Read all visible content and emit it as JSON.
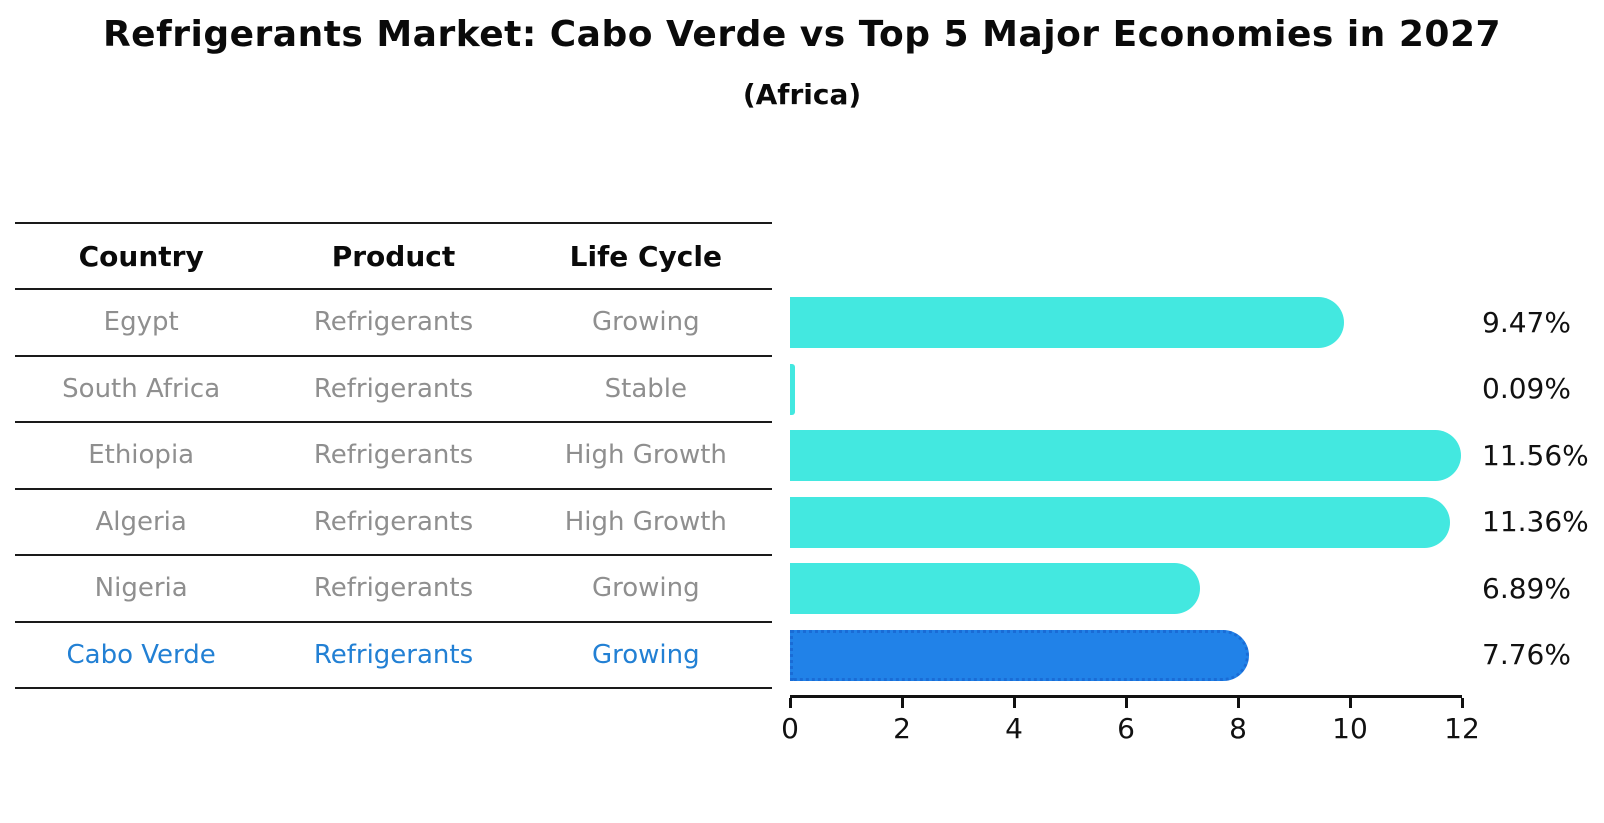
{
  "title": "Refrigerants Market: Cabo Verde vs Top 5 Major Economies in 2027",
  "subtitle": "(Africa)",
  "table": {
    "headers": [
      "Country",
      "Product",
      "Life Cycle"
    ],
    "rows": [
      {
        "country": "Egypt",
        "product": "Refrigerants",
        "life_cycle": "Growing",
        "highlight": false
      },
      {
        "country": "South Africa",
        "product": "Refrigerants",
        "life_cycle": "Stable",
        "highlight": false
      },
      {
        "country": "Ethiopia",
        "product": "Refrigerants",
        "life_cycle": "High Growth",
        "highlight": false
      },
      {
        "country": "Algeria",
        "product": "Refrigerants",
        "life_cycle": "High Growth",
        "highlight": false
      },
      {
        "country": "Nigeria",
        "product": "Refrigerants",
        "life_cycle": "Growing",
        "highlight": false
      },
      {
        "country": "Cabo Verde",
        "product": "Refrigerants",
        "life_cycle": "Growing",
        "highlight": true
      }
    ]
  },
  "chart_data": {
    "type": "bar",
    "orientation": "horizontal",
    "title": "Refrigerants Market: Cabo Verde vs Top 5 Major Economies in 2027 (Africa)",
    "categories": [
      "Egypt",
      "South Africa",
      "Ethiopia",
      "Algeria",
      "Nigeria",
      "Cabo Verde"
    ],
    "values": [
      9.47,
      0.09,
      11.56,
      11.36,
      6.89,
      7.76
    ],
    "value_labels": [
      "9.47%",
      "0.09%",
      "11.56%",
      "11.36%",
      "6.89%",
      "7.76%"
    ],
    "x_ticks": [
      0,
      2,
      4,
      6,
      8,
      10,
      12
    ],
    "xlim": [
      0,
      12
    ],
    "xlabel": "",
    "ylabel": "",
    "grid": false,
    "legend": "none",
    "highlight_index": 5,
    "colors": {
      "bar": "#43e8e0",
      "highlight_bar": "#2182e8",
      "highlight_border": "#1a6cd6",
      "highlight_text": "#2280d4",
      "row_text": "#8f8f8f",
      "label_text": "#111111"
    }
  }
}
